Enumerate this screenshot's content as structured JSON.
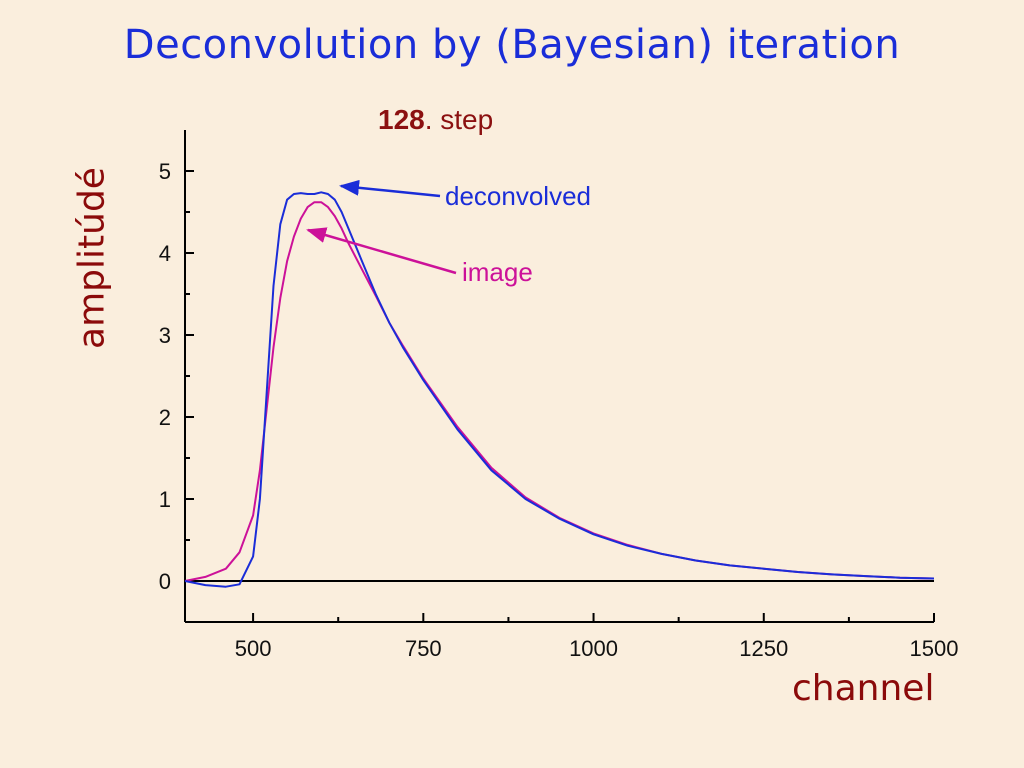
{
  "title": "Deconvolution by (Bayesian) iteration",
  "step": {
    "number": "128",
    "suffix": ". step"
  },
  "colors": {
    "deconvolved": "#1a2dd8",
    "image": "#cc1199",
    "title": "#1a2dd8",
    "axis_title": "#8b0a0a"
  },
  "chart_data": {
    "type": "line",
    "xlabel": "channel",
    "ylabel": "amplitúdé",
    "xlim": [
      400,
      1500
    ],
    "ylim": [
      -0.5,
      5.5
    ],
    "x_ticks": [
      500,
      750,
      1000,
      1250,
      1500
    ],
    "y_ticks": [
      0,
      1,
      2,
      3,
      4,
      5
    ],
    "zero_line": true,
    "grid": false,
    "series": [
      {
        "name": "deconvolved",
        "color": "#1a2dd8",
        "x": [
          400,
          430,
          460,
          480,
          500,
          510,
          520,
          530,
          540,
          550,
          560,
          570,
          580,
          590,
          600,
          610,
          620,
          630,
          640,
          660,
          680,
          700,
          720,
          750,
          800,
          850,
          900,
          950,
          1000,
          1050,
          1100,
          1150,
          1200,
          1250,
          1300,
          1350,
          1400,
          1450,
          1500
        ],
        "y": [
          0.0,
          -0.05,
          -0.07,
          -0.04,
          0.3,
          1.0,
          2.3,
          3.6,
          4.35,
          4.65,
          4.72,
          4.73,
          4.72,
          4.72,
          4.74,
          4.72,
          4.65,
          4.5,
          4.3,
          3.9,
          3.5,
          3.15,
          2.85,
          2.45,
          1.85,
          1.35,
          1.0,
          0.76,
          0.57,
          0.43,
          0.33,
          0.25,
          0.19,
          0.15,
          0.11,
          0.08,
          0.06,
          0.04,
          0.03
        ]
      },
      {
        "name": "image",
        "color": "#cc1199",
        "x": [
          400,
          430,
          460,
          480,
          500,
          510,
          520,
          530,
          540,
          550,
          560,
          570,
          580,
          590,
          600,
          610,
          620,
          630,
          640,
          660,
          680,
          700,
          720,
          750,
          800,
          850,
          900,
          950,
          1000,
          1050,
          1100,
          1150,
          1200,
          1250,
          1300,
          1350,
          1400,
          1450,
          1500
        ],
        "y": [
          0.0,
          0.05,
          0.15,
          0.35,
          0.8,
          1.35,
          2.1,
          2.85,
          3.45,
          3.9,
          4.2,
          4.42,
          4.56,
          4.62,
          4.62,
          4.56,
          4.45,
          4.3,
          4.12,
          3.8,
          3.48,
          3.15,
          2.87,
          2.47,
          1.88,
          1.38,
          1.02,
          0.77,
          0.58,
          0.44,
          0.33,
          0.25,
          0.19,
          0.15,
          0.11,
          0.08,
          0.06,
          0.04,
          0.03
        ]
      }
    ],
    "annotations": [
      {
        "text": "deconvolved",
        "target_series": "deconvolved",
        "color": "#1a2dd8"
      },
      {
        "text": "image",
        "target_series": "image",
        "color": "#cc1199"
      }
    ]
  }
}
